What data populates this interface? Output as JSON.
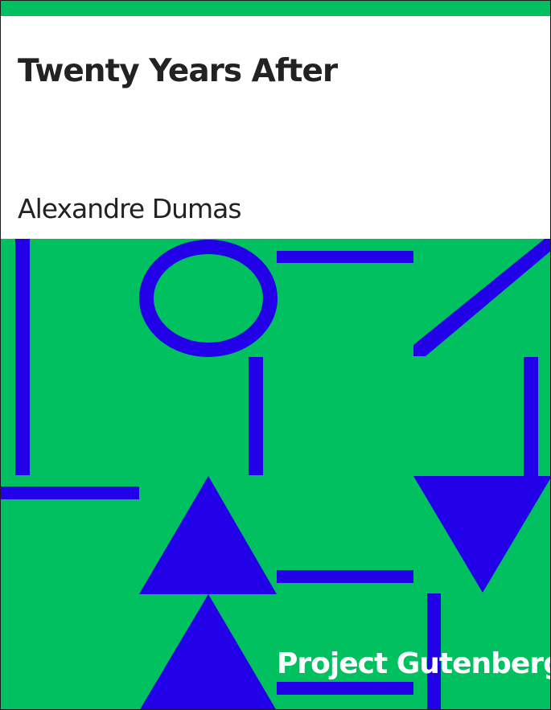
{
  "book": {
    "title": "Twenty Years After",
    "author": "Alexandre Dumas",
    "publisher": "Project Gutenberg"
  },
  "colors": {
    "background": "#00c060",
    "panel": "#ffffff",
    "text": "#222222",
    "pattern": "#2200e8",
    "publisher_text": "#ffffff"
  }
}
